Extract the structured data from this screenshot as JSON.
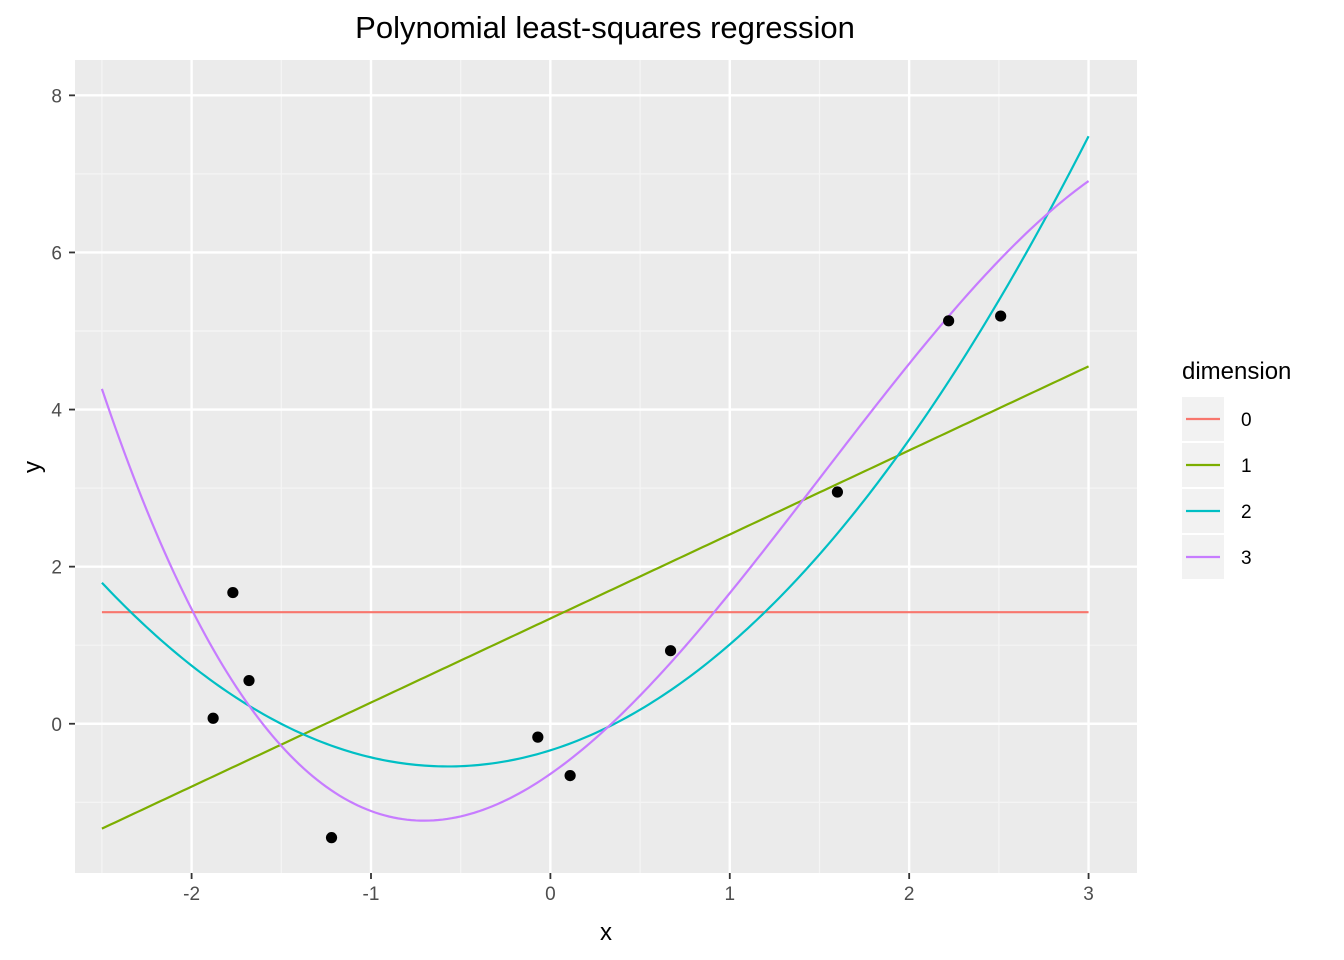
{
  "chart_data": {
    "type": "line",
    "title": "Polynomial least-squares regression",
    "xlabel": "x",
    "ylabel": "y",
    "xlim": [
      -2.65,
      3.27
    ],
    "ylim": [
      -1.9,
      8.45
    ],
    "x_ticks": [
      -2,
      -1,
      0,
      1,
      2,
      3
    ],
    "x_tick_labels": [
      "-2",
      "-1",
      "0",
      "1",
      "2",
      "3"
    ],
    "y_ticks": [
      0,
      2,
      4,
      6,
      8
    ],
    "y_tick_labels": [
      "0",
      "2",
      "4",
      "6",
      "8"
    ],
    "grid": true,
    "legend": {
      "title": "dimension",
      "position": "right"
    },
    "series": [
      {
        "name": "0",
        "color": "#F8766D",
        "coefficients": [
          1.42
        ],
        "x_range": [
          -2.5,
          3
        ]
      },
      {
        "name": "1",
        "color": "#7CAE00",
        "coefficients": [
          1.34,
          1.07
        ],
        "x_range": [
          -2.5,
          3
        ]
      },
      {
        "name": "2",
        "color": "#00BFC4",
        "coefficients": [
          -0.338,
          0.719,
          0.629
        ],
        "x_range": [
          -2.5,
          3
        ]
      },
      {
        "name": "3",
        "color": "#C77CFF",
        "coefficients": [
          -0.639,
          1.589,
          0.915,
          -0.202
        ],
        "x_range": [
          -2.5,
          3
        ]
      }
    ],
    "points": [
      {
        "x": -1.88,
        "y": 0.07
      },
      {
        "x": -1.77,
        "y": 1.67
      },
      {
        "x": -1.68,
        "y": 0.55
      },
      {
        "x": -1.22,
        "y": -1.45
      },
      {
        "x": -0.07,
        "y": -0.17
      },
      {
        "x": 0.11,
        "y": -0.66
      },
      {
        "x": 0.67,
        "y": 0.93
      },
      {
        "x": 1.6,
        "y": 2.95
      },
      {
        "x": 2.22,
        "y": 5.13
      },
      {
        "x": 2.51,
        "y": 5.19
      }
    ]
  }
}
